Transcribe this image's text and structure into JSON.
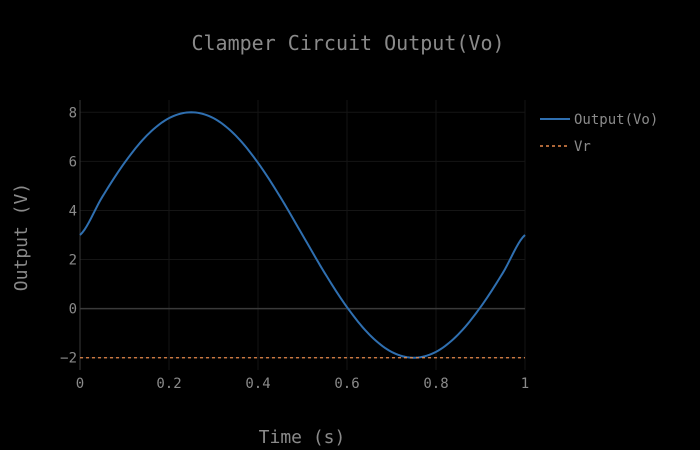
{
  "chart_data": {
    "type": "line",
    "title": "Clamper Circuit Output(Vo)",
    "xlabel": "Time (s)",
    "ylabel": "Output (V)",
    "xlim": [
      0,
      1
    ],
    "ylim": [
      -2.5,
      8.5
    ],
    "x_ticks": [
      0,
      0.2,
      0.4,
      0.6,
      0.8,
      1
    ],
    "x_tick_labels": [
      "0",
      "0.2",
      "0.4",
      "0.6",
      "0.8",
      "1"
    ],
    "y_ticks": [
      -2,
      0,
      2,
      4,
      6,
      8
    ],
    "y_tick_labels": [
      "−2",
      "0",
      "2",
      "4",
      "6",
      "8"
    ],
    "grid": true,
    "legend_position": "top-right",
    "series": [
      {
        "name": "Output(Vo)",
        "style": "solid",
        "color": "#2f6fb0",
        "x": [
          0,
          0.05,
          0.1,
          0.15,
          0.2,
          0.25,
          0.3,
          0.35,
          0.4,
          0.45,
          0.5,
          0.55,
          0.6,
          0.65,
          0.7,
          0.75,
          0.8,
          0.85,
          0.9,
          0.95,
          1
        ],
        "y": [
          3,
          4.55,
          5.94,
          7.05,
          7.76,
          8,
          7.76,
          7.05,
          5.94,
          4.55,
          3,
          1.45,
          0.06,
          -1.05,
          -1.76,
          -2,
          -1.76,
          -1.05,
          0.06,
          1.45,
          3
        ]
      },
      {
        "name": "Vr",
        "style": "dashed",
        "color": "#e8894a",
        "x": [
          0,
          1
        ],
        "y": [
          -2,
          -2
        ]
      }
    ]
  }
}
